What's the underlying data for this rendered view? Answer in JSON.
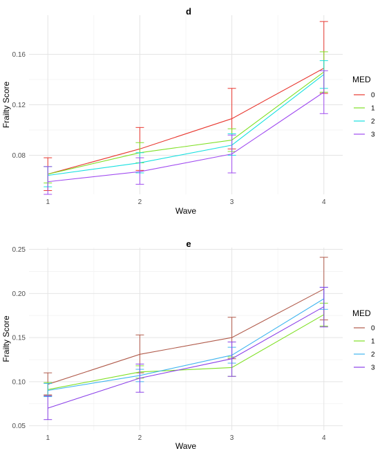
{
  "chart_data": [
    {
      "type": "line",
      "title": "d",
      "xlabel": "Wave",
      "ylabel": "Frailty Score",
      "x": [
        1,
        2,
        3,
        4
      ],
      "xticks": [
        "1",
        "2",
        "3",
        "4"
      ],
      "yticks": [
        "0.08",
        "0.12",
        "0.16"
      ],
      "ylim": [
        0.049,
        0.191
      ],
      "legend_title": "MED",
      "legend_position": "right",
      "series": [
        {
          "name": "0",
          "color": "#E8372F",
          "values": [
            0.065,
            0.085,
            0.109,
            0.149
          ],
          "lower": [
            0.052,
            0.068,
            0.085,
            0.129
          ],
          "upper": [
            0.078,
            0.102,
            0.133,
            0.186
          ]
        },
        {
          "name": "1",
          "color": "#7FE024",
          "values": [
            0.065,
            0.082,
            0.092,
            0.146
          ],
          "lower": [
            0.058,
            0.074,
            0.083,
            0.13
          ],
          "upper": [
            0.071,
            0.09,
            0.101,
            0.162
          ]
        },
        {
          "name": "2",
          "color": "#16E0E0",
          "values": [
            0.064,
            0.074,
            0.088,
            0.144
          ],
          "lower": [
            0.055,
            0.066,
            0.08,
            0.133
          ],
          "upper": [
            0.071,
            0.082,
            0.097,
            0.155
          ]
        },
        {
          "name": "3",
          "color": "#A04BF0",
          "values": [
            0.059,
            0.067,
            0.081,
            0.13
          ],
          "lower": [
            0.049,
            0.057,
            0.066,
            0.113
          ],
          "upper": [
            0.071,
            0.078,
            0.096,
            0.147
          ]
        }
      ]
    },
    {
      "type": "line",
      "title": "e",
      "xlabel": "Wave",
      "ylabel": "Frailty Score",
      "x": [
        1,
        2,
        3,
        4
      ],
      "xticks": [
        "1",
        "2",
        "3",
        "4"
      ],
      "yticks": [
        "0.05",
        "0.10",
        "0.15",
        "0.20",
        "0.25"
      ],
      "ylim": [
        0.045,
        0.252
      ],
      "legend_title": "MED",
      "legend_position": "right",
      "series": [
        {
          "name": "0",
          "color": "#B05A4A",
          "values": [
            0.097,
            0.131,
            0.15,
            0.205
          ],
          "lower": [
            0.085,
            0.11,
            0.126,
            0.17
          ],
          "upper": [
            0.11,
            0.153,
            0.173,
            0.241
          ]
        },
        {
          "name": "1",
          "color": "#7FE024",
          "values": [
            0.091,
            0.111,
            0.116,
            0.176
          ],
          "lower": [
            0.084,
            0.104,
            0.106,
            0.163
          ],
          "upper": [
            0.099,
            0.118,
            0.128,
            0.189
          ]
        },
        {
          "name": "2",
          "color": "#3FB5F0",
          "values": [
            0.09,
            0.107,
            0.13,
            0.194
          ],
          "lower": [
            0.083,
            0.1,
            0.121,
            0.182
          ],
          "upper": [
            0.098,
            0.114,
            0.139,
            0.207
          ]
        },
        {
          "name": "3",
          "color": "#8A3FE8",
          "values": [
            0.07,
            0.104,
            0.126,
            0.185
          ],
          "lower": [
            0.057,
            0.088,
            0.106,
            0.162
          ],
          "upper": [
            0.084,
            0.12,
            0.145,
            0.207
          ]
        }
      ]
    }
  ]
}
